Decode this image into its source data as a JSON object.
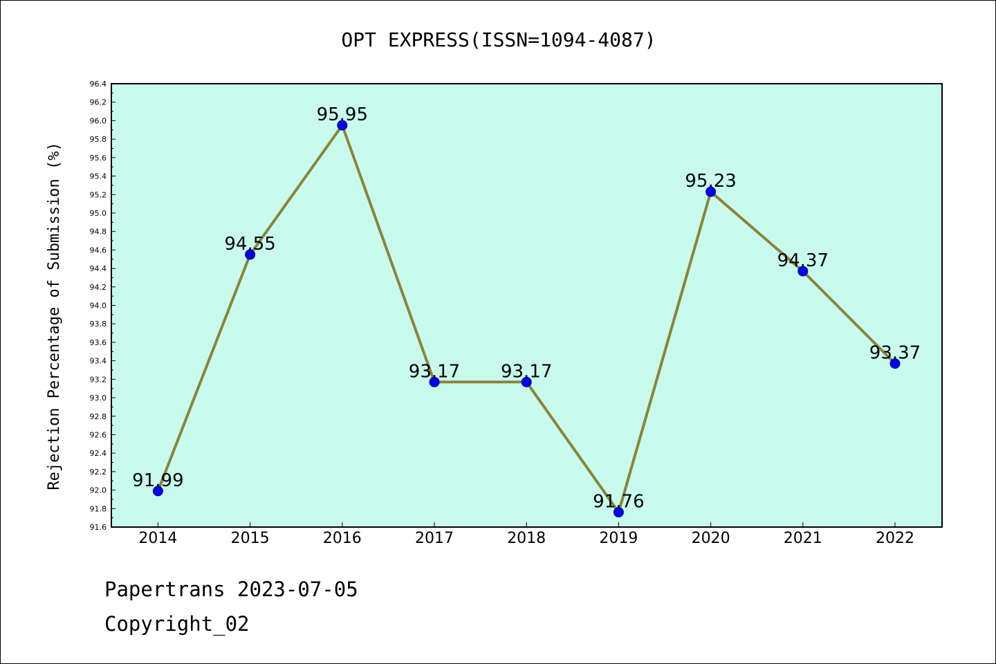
{
  "chart_data": {
    "type": "line",
    "title": "OPT EXPRESS(ISSN=1094-4087)",
    "xlabel": "",
    "ylabel": "Rejection Percentage of Submission (%)",
    "categories": [
      "2014",
      "2015",
      "2016",
      "2017",
      "2018",
      "2019",
      "2020",
      "2021",
      "2022"
    ],
    "series": [
      {
        "values": [
          91.99,
          94.55,
          95.95,
          93.17,
          93.17,
          91.76,
          95.23,
          94.37,
          93.37
        ]
      }
    ],
    "data_labels": [
      "91.99",
      "94.55",
      "95.95",
      "93.17",
      "93.17",
      "91.76",
      "95.23",
      "94.37",
      "93.37"
    ],
    "ylim": [
      91.6,
      96.4
    ],
    "yticks": [
      "91.6",
      "91.8",
      "92.0",
      "92.2",
      "92.4",
      "92.6",
      "92.8",
      "93.0",
      "93.2",
      "93.4",
      "93.6",
      "93.8",
      "94.0",
      "94.2",
      "94.4",
      "94.6",
      "94.8",
      "95.0",
      "95.2",
      "95.4",
      "95.6",
      "95.8",
      "96.0",
      "96.2",
      "96.4"
    ],
    "grid": false,
    "legend": "none",
    "colors": {
      "plot_background": "#c8fbee",
      "line": "#8b843a",
      "marker": "#0000ee"
    }
  },
  "footer": {
    "source": "Papertrans 2023-07-05",
    "copyright": "Copyright_02"
  }
}
